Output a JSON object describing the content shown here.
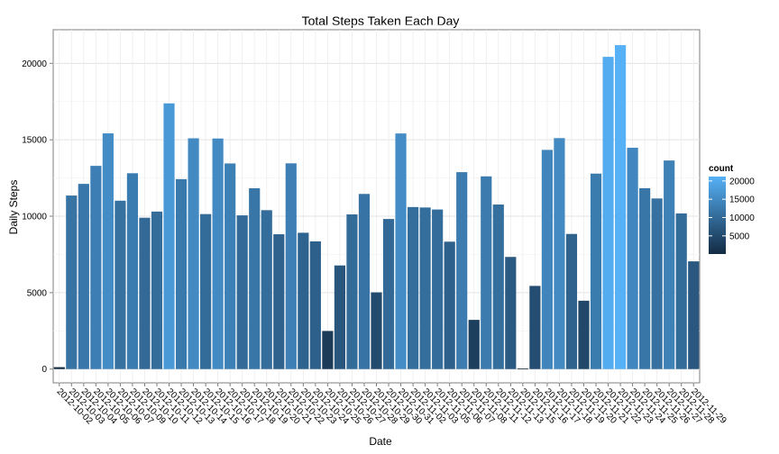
{
  "chart_data": {
    "type": "bar",
    "title": "Total Steps Taken Each Day",
    "xlabel": "Date",
    "ylabel": "Daily Steps",
    "ylim": [
      -900,
      22200
    ],
    "yticks": [
      0,
      5000,
      10000,
      15000,
      20000
    ],
    "grid": true,
    "legend_position": "right",
    "categories": [
      "2012-10-02",
      "2012-10-03",
      "2012-10-04",
      "2012-10-05",
      "2012-10-06",
      "2012-10-07",
      "2012-10-09",
      "2012-10-10",
      "2012-10-11",
      "2012-10-12",
      "2012-10-13",
      "2012-10-14",
      "2012-10-15",
      "2012-10-16",
      "2012-10-17",
      "2012-10-18",
      "2012-10-19",
      "2012-10-20",
      "2012-10-21",
      "2012-10-22",
      "2012-10-23",
      "2012-10-24",
      "2012-10-25",
      "2012-10-26",
      "2012-10-27",
      "2012-10-28",
      "2012-10-29",
      "2012-10-30",
      "2012-10-31",
      "2012-11-02",
      "2012-11-03",
      "2012-11-05",
      "2012-11-06",
      "2012-11-07",
      "2012-11-08",
      "2012-11-11",
      "2012-11-12",
      "2012-11-13",
      "2012-11-15",
      "2012-11-16",
      "2012-11-17",
      "2012-11-18",
      "2012-11-19",
      "2012-11-20",
      "2012-11-21",
      "2012-11-22",
      "2012-11-23",
      "2012-11-24",
      "2012-11-25",
      "2012-11-26",
      "2012-11-27",
      "2012-11-28",
      "2012-11-29"
    ],
    "values": [
      126,
      11352,
      12116,
      13294,
      15420,
      11015,
      12811,
      9900,
      10304,
      17382,
      12426,
      15098,
      10139,
      15084,
      13452,
      10056,
      11829,
      10395,
      8821,
      13460,
      8918,
      8355,
      2492,
      6778,
      10119,
      11458,
      5018,
      9819,
      15414,
      10600,
      10571,
      10439,
      8334,
      12883,
      3219,
      12608,
      10765,
      7336,
      41,
      5441,
      14339,
      15110,
      8841,
      4472,
      12787,
      20427,
      21194,
      14478,
      11834,
      11162,
      13646,
      10183,
      7047
    ],
    "legend": {
      "title": "count",
      "values": [
        5000,
        10000,
        15000,
        20000
      ],
      "low_color": "#132B43",
      "high_color": "#56B1F7",
      "domain": [
        41,
        21194
      ]
    }
  }
}
